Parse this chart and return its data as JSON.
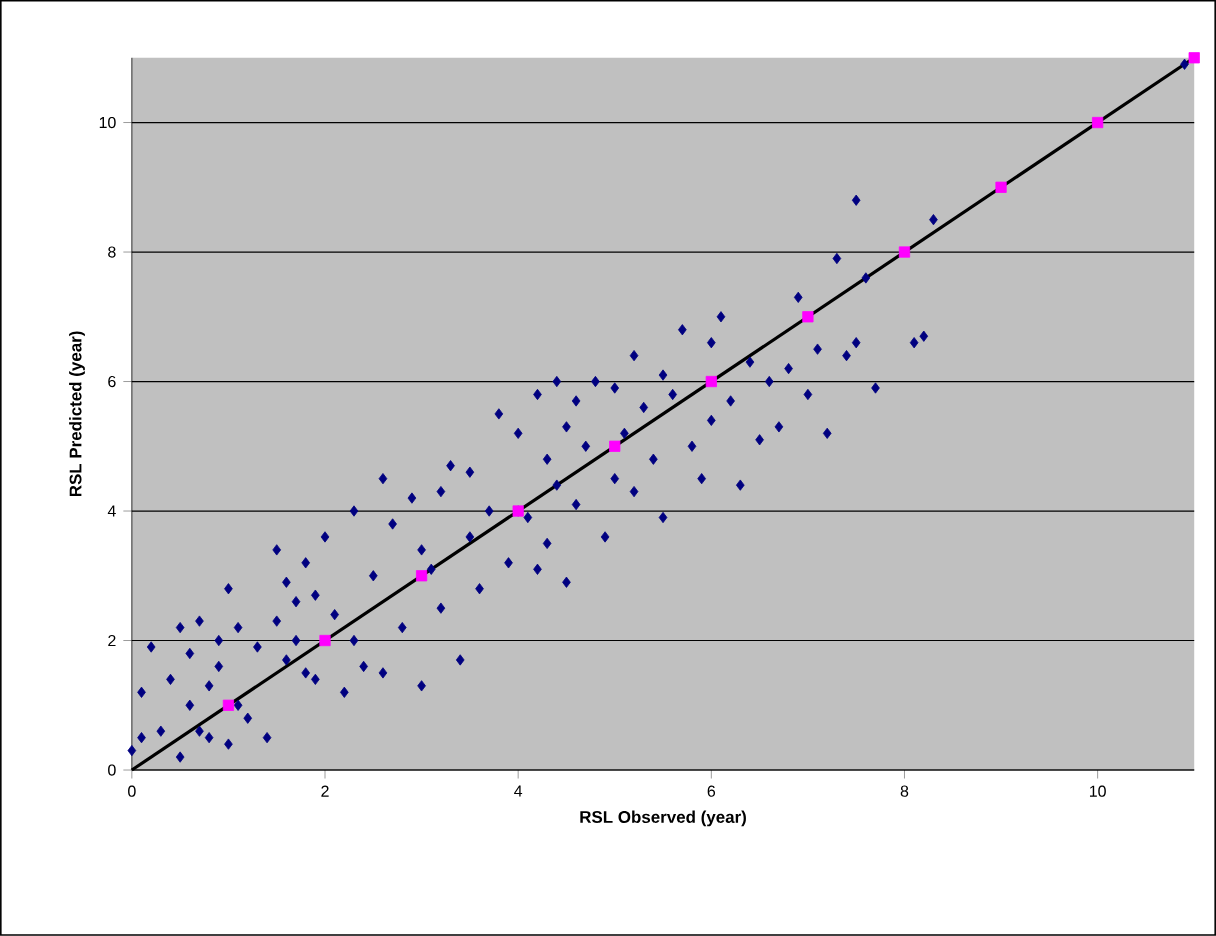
{
  "chart_data": {
    "type": "scatter",
    "xlabel": "RSL Observed (year)",
    "ylabel": "RSL Predicted (year)",
    "xlim": [
      0,
      11
    ],
    "ylim": [
      0,
      11
    ],
    "xticks": [
      0,
      2,
      4,
      6,
      8,
      10
    ],
    "yticks": [
      0,
      2,
      4,
      6,
      8,
      10
    ],
    "grid": "y",
    "series": [
      {
        "marker": "diamond",
        "color": "#000080",
        "x": [
          0.0,
          0.1,
          0.1,
          0.2,
          0.3,
          0.4,
          0.5,
          0.5,
          0.6,
          0.6,
          0.7,
          0.7,
          0.8,
          0.8,
          0.9,
          0.9,
          1.0,
          1.0,
          1.1,
          1.1,
          1.2,
          1.3,
          1.4,
          1.5,
          1.5,
          1.6,
          1.6,
          1.7,
          1.7,
          1.8,
          1.8,
          1.9,
          1.9,
          2.0,
          2.1,
          2.2,
          2.3,
          2.3,
          2.4,
          2.5,
          2.6,
          2.6,
          2.7,
          2.8,
          2.9,
          3.0,
          3.0,
          3.1,
          3.2,
          3.2,
          3.3,
          3.4,
          3.5,
          3.5,
          3.6,
          3.7,
          3.8,
          3.9,
          4.0,
          4.0,
          4.1,
          4.2,
          4.2,
          4.3,
          4.3,
          4.4,
          4.4,
          4.5,
          4.5,
          4.6,
          4.6,
          4.7,
          4.8,
          4.9,
          5.0,
          5.0,
          5.1,
          5.2,
          5.2,
          5.3,
          5.4,
          5.5,
          5.5,
          5.6,
          5.7,
          5.8,
          5.9,
          6.0,
          6.0,
          6.1,
          6.2,
          6.3,
          6.4,
          6.5,
          6.6,
          6.7,
          6.8,
          6.9,
          7.0,
          7.1,
          7.2,
          7.3,
          7.4,
          7.5,
          7.5,
          7.6,
          7.7,
          8.1,
          8.2,
          8.3,
          10.9
        ],
        "values": [
          0.3,
          1.2,
          0.5,
          1.9,
          0.6,
          1.4,
          2.2,
          0.2,
          1.0,
          1.8,
          2.3,
          0.6,
          1.3,
          0.5,
          1.6,
          2.0,
          0.4,
          2.8,
          1.0,
          2.2,
          0.8,
          1.9,
          0.5,
          2.3,
          3.4,
          1.7,
          2.9,
          2.6,
          2.0,
          3.2,
          1.5,
          2.7,
          1.4,
          3.6,
          2.4,
          1.2,
          2.0,
          4.0,
          1.6,
          3.0,
          4.5,
          1.5,
          3.8,
          2.2,
          4.2,
          3.4,
          1.3,
          3.1,
          4.3,
          2.5,
          4.7,
          1.7,
          3.6,
          4.6,
          2.8,
          4.0,
          5.5,
          3.2,
          5.2,
          4.0,
          3.9,
          5.8,
          3.1,
          4.8,
          3.5,
          6.0,
          4.4,
          5.3,
          2.9,
          5.7,
          4.1,
          5.0,
          6.0,
          3.6,
          5.9,
          4.5,
          5.2,
          6.4,
          4.3,
          5.6,
          4.8,
          6.1,
          3.9,
          5.8,
          6.8,
          5.0,
          4.5,
          6.6,
          5.4,
          7.0,
          5.7,
          4.4,
          6.3,
          5.1,
          6.0,
          5.3,
          6.2,
          7.3,
          5.8,
          6.5,
          5.2,
          7.9,
          6.4,
          8.8,
          6.6,
          7.6,
          5.9,
          6.6,
          6.7,
          8.5,
          10.9
        ]
      },
      {
        "type": "line",
        "marker": "none",
        "color": "#000000",
        "x": [
          0,
          11
        ],
        "values": [
          0,
          11
        ]
      },
      {
        "marker": "square",
        "color": "#ff00ff",
        "x": [
          1,
          2,
          3,
          4,
          5,
          6,
          7,
          8,
          9,
          10,
          11
        ],
        "values": [
          1,
          2,
          3,
          4,
          5,
          6,
          7,
          8,
          9,
          10,
          11
        ]
      }
    ]
  }
}
